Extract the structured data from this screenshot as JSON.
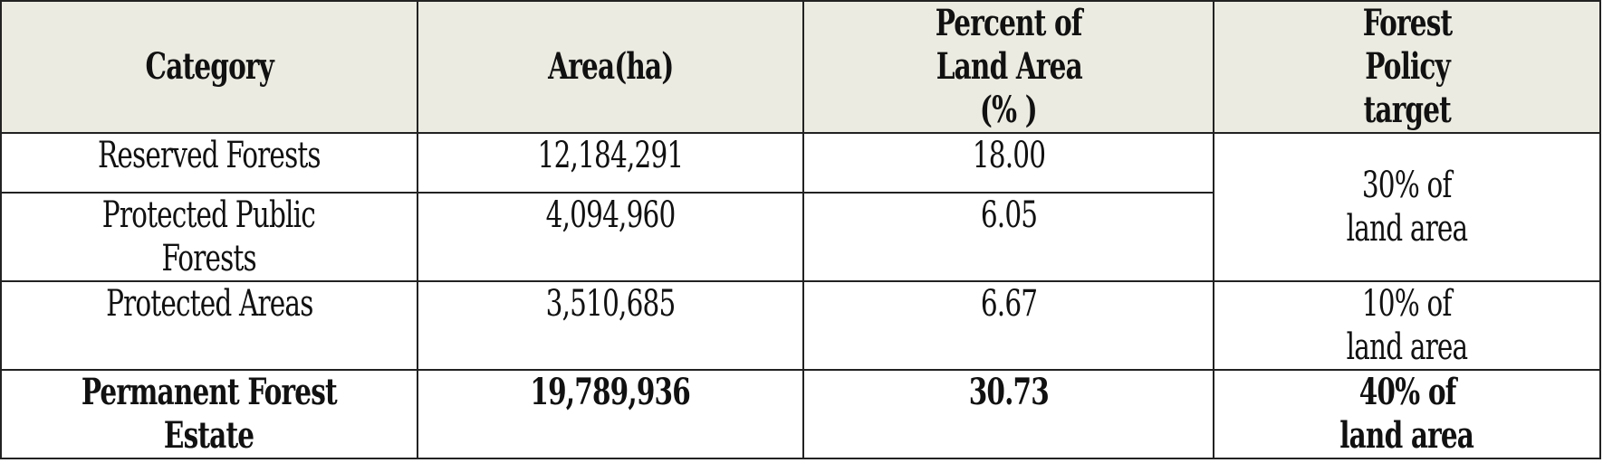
{
  "table": {
    "headers": [
      "Category",
      "Area(ha)",
      "Percent of Land Area (% )",
      "Forest Policy target"
    ],
    "header_lines": [
      [
        "Category"
      ],
      [
        "Area(ha)"
      ],
      [
        "Percent of",
        "Land Area",
        "(% )"
      ],
      [
        "Forest",
        "Policy",
        "target"
      ]
    ],
    "rows": [
      {
        "category_lines": [
          "Reserved Forests"
        ],
        "area": "12,184,291",
        "percent": "18.00"
      },
      {
        "category_lines": [
          "Protected Public",
          "Forests"
        ],
        "area": "4,094,960",
        "percent": "6.05"
      },
      {
        "category_lines": [
          "Protected Areas"
        ],
        "area": "3,510,685",
        "percent": "6.67",
        "target_lines": [
          "10% of",
          "land area"
        ]
      },
      {
        "category_lines": [
          "Permanent Forest",
          "Estate"
        ],
        "area": "19,789,936",
        "percent": "30.73",
        "target_lines": [
          "40%  of",
          "land area"
        ]
      }
    ],
    "merged_target_lines": [
      "30% of",
      "land area"
    ]
  },
  "colors": {
    "header_background": "#ecebe2",
    "border": "#222222"
  }
}
